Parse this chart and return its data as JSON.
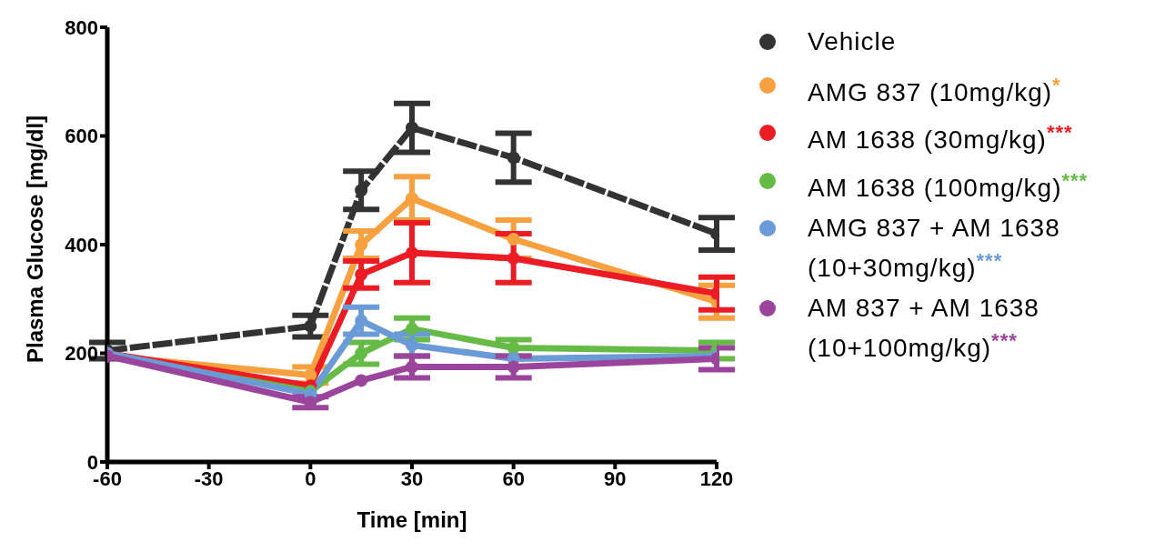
{
  "chart_data": {
    "type": "line",
    "xlabel": "Time [min]",
    "ylabel": "Plasma Glucose [mg/dl]",
    "x": [
      -60,
      0,
      15,
      30,
      60,
      120
    ],
    "xlim": [
      -60,
      120
    ],
    "xticks": [
      -60,
      -30,
      0,
      30,
      60,
      90,
      120
    ],
    "ylim": [
      0,
      800
    ],
    "yticks": [
      0,
      200,
      400,
      600,
      800
    ],
    "grid": false,
    "legend": "right",
    "marker": "circle",
    "annotations": [
      "*",
      "***",
      "***",
      "***",
      "***"
    ],
    "series": [
      {
        "name": "Vehicle",
        "color": "#333333",
        "line_style": "dashed",
        "values": [
          205,
          250,
          500,
          615,
          560,
          420
        ],
        "errors": [
          15,
          20,
          35,
          45,
          45,
          30
        ]
      },
      {
        "name": "AMG 837 (10mg/kg)",
        "color": "#f7a040",
        "line_style": "solid",
        "values": [
          195,
          160,
          400,
          485,
          410,
          295
        ],
        "errors": [
          null,
          15,
          25,
          40,
          35,
          30
        ]
      },
      {
        "name": "AM 1638 (30mg/kg)",
        "color": "#ec1c24",
        "line_style": "solid",
        "values": [
          200,
          140,
          345,
          385,
          375,
          310
        ],
        "errors": [
          null,
          null,
          25,
          55,
          45,
          30
        ]
      },
      {
        "name": "AM 1638 (100mg/kg)",
        "color": "#66bb46",
        "line_style": "solid",
        "values": [
          195,
          130,
          200,
          245,
          210,
          205
        ],
        "errors": [
          null,
          null,
          20,
          20,
          15,
          15
        ]
      },
      {
        "name": "AMG 837 + AM 1638 (10+30mg/kg)",
        "color": "#6a9bd6",
        "line_style": "solid",
        "values": [
          200,
          125,
          260,
          215,
          190,
          195
        ],
        "errors": [
          null,
          null,
          25,
          20,
          null,
          null
        ]
      },
      {
        "name": "AM 837 + AM 1638 (10+100mg/kg)",
        "color": "#9b449c",
        "line_style": "solid",
        "values": [
          195,
          110,
          150,
          175,
          175,
          190
        ],
        "errors": [
          null,
          10,
          null,
          20,
          20,
          20
        ]
      }
    ]
  }
}
